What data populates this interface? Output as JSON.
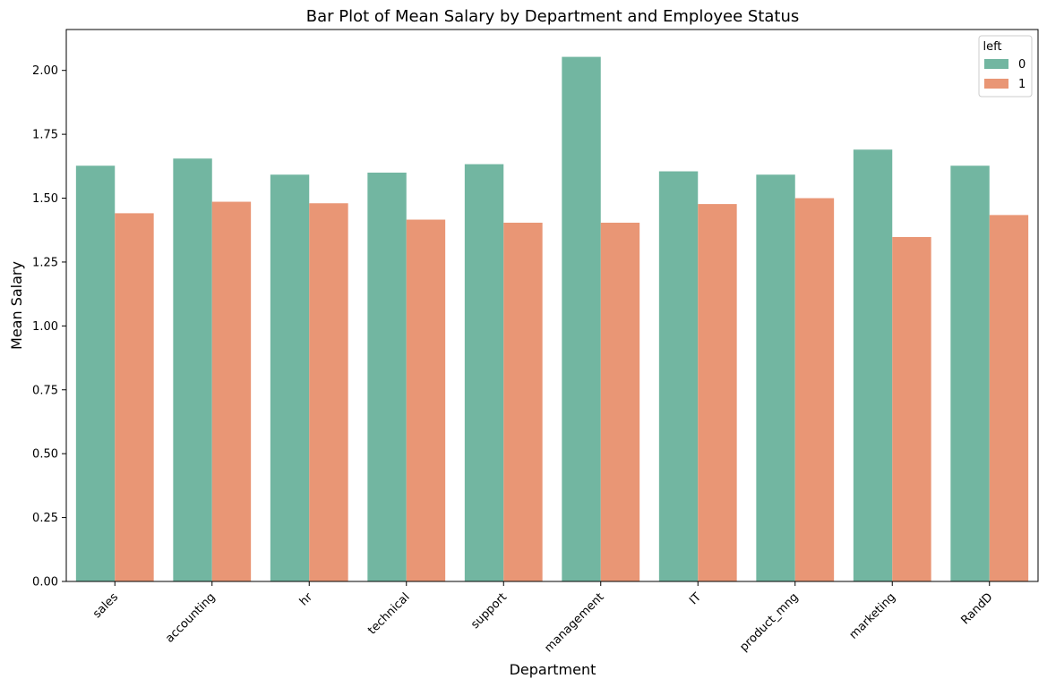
{
  "chart_data": {
    "type": "bar",
    "title": "Bar Plot of Mean Salary by Department and Employee Status",
    "xlabel": "Department",
    "ylabel": "Mean Salary",
    "categories": [
      "sales",
      "accounting",
      "hr",
      "technical",
      "support",
      "management",
      "IT",
      "product_mng",
      "marketing",
      "RandD"
    ],
    "series": [
      {
        "name": "0",
        "color": "#72b6a1",
        "values": [
          1.627,
          1.655,
          1.592,
          1.6,
          1.633,
          2.053,
          1.605,
          1.592,
          1.69,
          1.627
        ]
      },
      {
        "name": "1",
        "color": "#e99675",
        "values": [
          1.441,
          1.486,
          1.48,
          1.416,
          1.404,
          1.404,
          1.477,
          1.5,
          1.348,
          1.434
        ]
      }
    ],
    "ylim": [
      0,
      2.16
    ],
    "yticks": [
      0.0,
      0.25,
      0.5,
      0.75,
      1.0,
      1.25,
      1.5,
      1.75,
      2.0
    ],
    "ytick_labels": [
      "0.00",
      "0.25",
      "0.50",
      "0.75",
      "1.00",
      "1.25",
      "1.50",
      "1.75",
      "2.00"
    ],
    "legend": {
      "title": "left",
      "placement": "top-right"
    },
    "grid": false
  }
}
